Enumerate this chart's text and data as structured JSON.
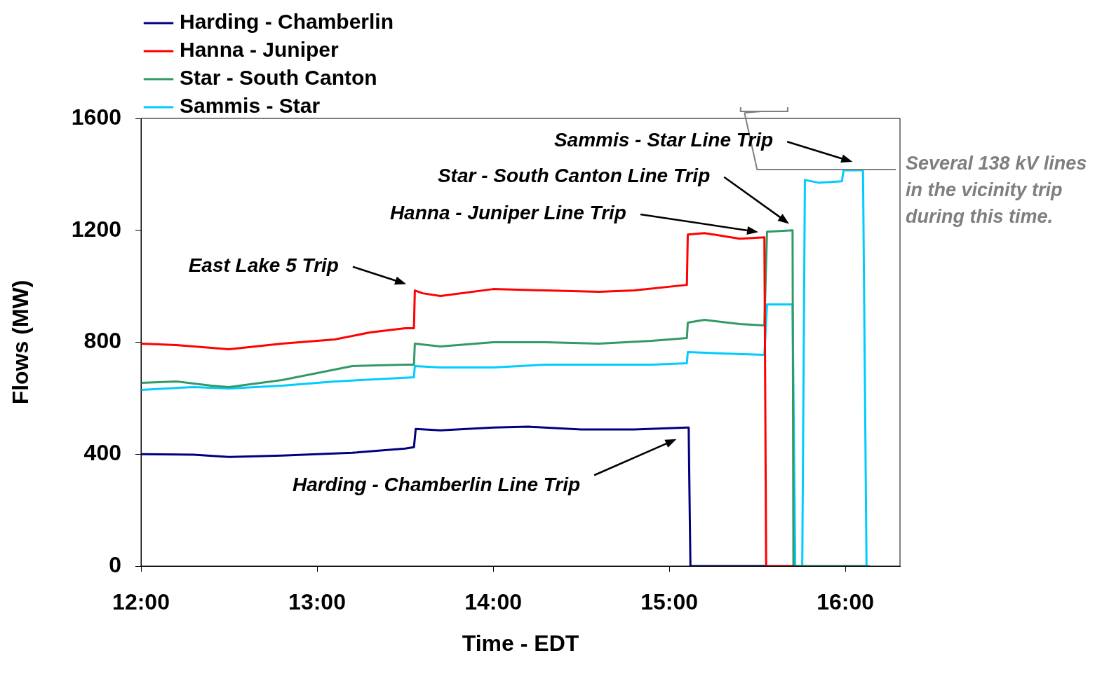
{
  "chart_data": {
    "type": "line",
    "xlabel": "Time - EDT",
    "ylabel": "Flows (MW)",
    "xlim": [
      12,
      16.31
    ],
    "ylim": [
      0,
      1600
    ],
    "xticks": [
      {
        "value": 12,
        "label": "12:00"
      },
      {
        "value": 13,
        "label": "13:00"
      },
      {
        "value": 14,
        "label": "14:00"
      },
      {
        "value": 15,
        "label": "15:00"
      },
      {
        "value": 16,
        "label": "16:00"
      }
    ],
    "yticks": [
      0,
      400,
      800,
      1200,
      1600
    ],
    "grid": false,
    "legend": "top left",
    "marker": "none",
    "line_style": "solid",
    "series": [
      {
        "name": "Harding - Chamberlin",
        "color": "#000080",
        "x": [
          12,
          12.3,
          12.5,
          12.8,
          13.2,
          13.5,
          13.55,
          13.56,
          13.7,
          14,
          14.2,
          14.5,
          14.8,
          15.1,
          15.11,
          15.12,
          15.545
        ],
        "values": [
          400,
          398,
          390,
          395,
          405,
          420,
          425,
          490,
          485,
          495,
          498,
          488,
          488,
          495,
          495,
          0,
          0
        ]
      },
      {
        "name": "Hanna - Juniper",
        "color": "#ff0000",
        "x": [
          12,
          12.2,
          12.5,
          12.8,
          13.1,
          13.3,
          13.5,
          13.55,
          13.555,
          13.6,
          13.7,
          14,
          14.3,
          14.6,
          14.8,
          15.1,
          15.105,
          15.2,
          15.4,
          15.54,
          15.55,
          15.71
        ],
        "values": [
          795,
          790,
          775,
          795,
          810,
          835,
          850,
          850,
          985,
          975,
          965,
          990,
          985,
          980,
          985,
          1005,
          1185,
          1190,
          1170,
          1175,
          0,
          0
        ]
      },
      {
        "name": "Star - South Canton",
        "color": "#339966",
        "x": [
          12,
          12.2,
          12.4,
          12.5,
          12.8,
          13,
          13.2,
          13.5,
          13.55,
          13.555,
          13.7,
          14,
          14.3,
          14.6,
          14.9,
          15.1,
          15.105,
          15.2,
          15.4,
          15.54,
          15.555,
          15.7,
          15.705,
          16.12
        ],
        "values": [
          655,
          660,
          645,
          640,
          665,
          690,
          715,
          720,
          720,
          795,
          785,
          800,
          800,
          795,
          805,
          815,
          870,
          880,
          865,
          860,
          1195,
          1200,
          0,
          0
        ]
      },
      {
        "name": "Sammis - Star",
        "color": "#00ccff",
        "x": [
          12,
          12.3,
          12.5,
          12.8,
          13.1,
          13.4,
          13.55,
          13.555,
          13.7,
          14,
          14.3,
          14.6,
          14.9,
          15.1,
          15.105,
          15.3,
          15.54,
          15.555,
          15.7,
          15.715,
          15.755,
          15.77,
          15.85,
          15.98,
          15.99,
          16.1,
          16.12,
          16.14
        ],
        "values": [
          630,
          640,
          635,
          645,
          660,
          670,
          675,
          715,
          710,
          710,
          720,
          720,
          720,
          725,
          765,
          760,
          755,
          935,
          935,
          0,
          0,
          1380,
          1370,
          1375,
          1415,
          1415,
          0,
          0
        ]
      }
    ],
    "annotations": [
      "East Lake 5 Trip",
      "Harding - Chamberlin Line Trip",
      "Hanna - Juniper Line Trip",
      "Star - South Canton Line Trip",
      "Sammis - Star Line Trip",
      "Several 138 kV lines in the vicinity trip during this time."
    ]
  }
}
